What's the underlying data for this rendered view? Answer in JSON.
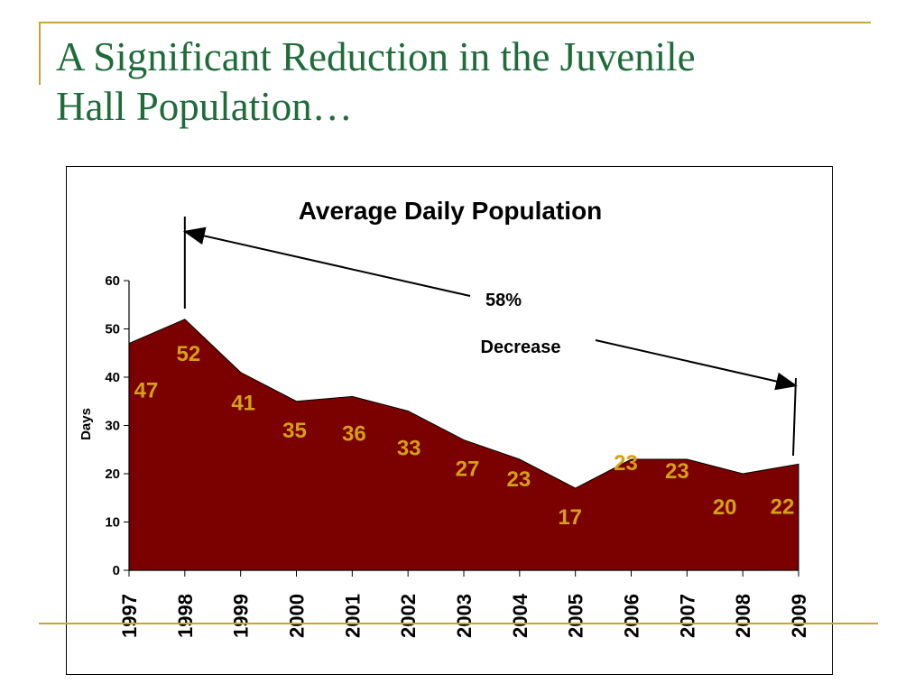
{
  "slide": {
    "title_line1": "A Significant Reduction in the Juvenile",
    "title_line2": "Hall Population…"
  },
  "colors": {
    "title": "#1f6b3a",
    "accent_rule": "#c9a33a",
    "area_fill": "#7b0000",
    "data_label": "#d4a017"
  },
  "chart_data": {
    "type": "area",
    "title": "Average Daily Population",
    "xlabel": "",
    "ylabel": "Days",
    "x": [
      "1997",
      "1998",
      "1999",
      "2000",
      "2001",
      "2002",
      "2003",
      "2004",
      "2005",
      "2006",
      "2007",
      "2008",
      "2009"
    ],
    "series": [
      {
        "values": [
          47,
          52,
          41,
          35,
          36,
          33,
          27,
          23,
          17,
          23,
          23,
          20,
          22
        ]
      }
    ],
    "ylim": [
      0,
      60
    ],
    "yticks": [
      0,
      10,
      20,
      30,
      40,
      50,
      60
    ],
    "grid": false,
    "legend": "none",
    "annotations": [
      {
        "text_line1": "58%",
        "text_line2": "Decrease",
        "from": "1998",
        "to": "2009"
      }
    ]
  }
}
